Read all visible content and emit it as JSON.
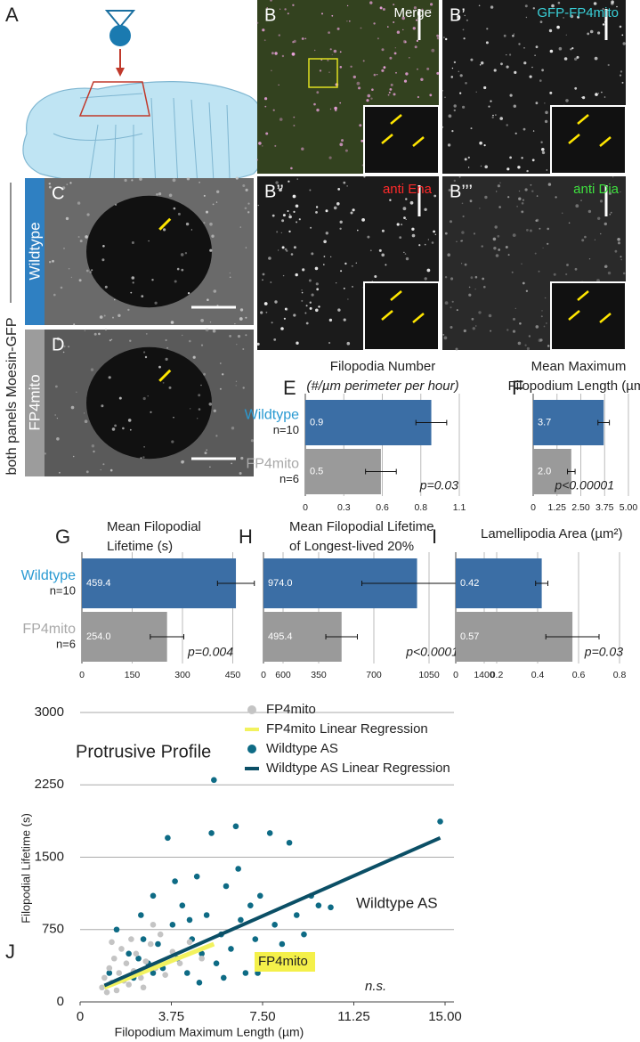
{
  "panel_A": "A",
  "side_label": "both panels Moesin-GFP",
  "row_labels": [
    "Wildtype",
    "FP4mito"
  ],
  "images": [
    {
      "label": "B",
      "caption": "Merge"
    },
    {
      "label": "B’",
      "caption": "GFP-FP4mito"
    },
    {
      "label": "B’’",
      "caption": "anti Ena"
    },
    {
      "label": "B’’’",
      "caption": "anti Dia"
    },
    {
      "label": "C"
    },
    {
      "label": "D"
    }
  ],
  "chart_data": [
    {
      "type": "bar",
      "label": "E",
      "title": "Filopodia Number",
      "subtitle": "(#/µm perimeter per hour)",
      "categories": [
        "Wildtype",
        "FP4mito"
      ],
      "n_labels": [
        "n=10",
        "n=6"
      ],
      "values": [
        0.9,
        0.54
      ],
      "value_labels": [
        "0.9",
        "0.5"
      ],
      "errors": [
        0.11,
        0.11
      ],
      "colors": [
        "#3b6ea5",
        "#9a9a9a"
      ],
      "xlim": [
        0,
        1.1
      ],
      "xticks": [
        0,
        {
          "value": 0.275,
          "label": "0.3"
        },
        {
          "value": 0.55,
          "label": "0.6"
        },
        {
          "value": 0.825,
          "label": "0.8"
        },
        1.1
      ],
      "grid": true,
      "annotation": "p=0.03"
    },
    {
      "type": "bar",
      "label": "F",
      "title": "Mean Maximum",
      "subtitle": "Filopodium Length (µm)",
      "values": [
        3.7,
        2.0
      ],
      "value_labels": [
        "3.7",
        "2.0"
      ],
      "errors": [
        0.3,
        0.2
      ],
      "colors": [
        "#3b6ea5",
        "#9a9a9a"
      ],
      "xlim": [
        0,
        5
      ],
      "xticks": [
        0,
        1.25,
        {
          "value": 2.5,
          "label": "2.50"
        },
        3.75,
        {
          "value": 5,
          "label": "5.00"
        }
      ],
      "grid": true,
      "annotation": "p<0.00001"
    },
    {
      "type": "bar",
      "label": "G",
      "title": "Mean Filopodial",
      "subtitle": "Lifetime (s)",
      "categories": [
        "Wildtype",
        "FP4mito"
      ],
      "n_labels": [
        "n=10",
        "n=6"
      ],
      "values": [
        459.4,
        254
      ],
      "value_labels": [
        "459.4",
        "254.0"
      ],
      "errors": [
        55,
        50
      ],
      "colors": [
        "#3b6ea5",
        "#9a9a9a"
      ],
      "xlim": [
        0,
        600
      ],
      "xticks": [
        0,
        150,
        300,
        450,
        600
      ],
      "grid": true,
      "annotation": "p=0.004"
    },
    {
      "type": "bar",
      "label": "H",
      "title": "Mean Filopodial Lifetime",
      "subtitle": "of Longest-lived 20%",
      "values": [
        974,
        495.4
      ],
      "value_labels": [
        "974.0",
        "495.4"
      ],
      "errors": [
        350,
        100
      ],
      "colors": [
        "#3b6ea5",
        "#9a9a9a"
      ],
      "xlim": [
        0,
        1400
      ],
      "xticks": [
        0,
        350,
        700,
        1050,
        1400
      ],
      "grid": true,
      "annotation": "p<0.0001"
    },
    {
      "type": "bar",
      "label": "I",
      "title": "Lamellipodia Area (µm²)",
      "values": [
        0.42,
        0.57
      ],
      "value_labels": [
        "0.42",
        "0.57"
      ],
      "errors": [
        0.03,
        0.13
      ],
      "colors": [
        "#3b6ea5",
        "#9a9a9a"
      ],
      "xlim": [
        0,
        0.8
      ],
      "xticks": [
        0,
        0.2,
        0.4,
        0.6,
        0.8
      ],
      "grid": true,
      "annotation": "p=0.03"
    },
    {
      "type": "scatter",
      "label": "J",
      "title": "Protrusive Profile",
      "x_label": "Filopodium Maximum Length (µm)",
      "y_label": "Filopodial Lifetime (s)",
      "xlim": [
        0,
        15
      ],
      "xticks": [
        0,
        3.75,
        {
          "value": 7.5,
          "label": "7.50"
        },
        11.25,
        {
          "value": 15,
          "label": "15.00"
        }
      ],
      "ylim": [
        0,
        3000
      ],
      "yticks": [
        0,
        750,
        1500,
        2250,
        3000
      ],
      "grid": true,
      "legend": "top",
      "series": [
        {
          "name": "FP4mito",
          "type": "scatter",
          "color": "#c4c4c4",
          "x": [
            0.9,
            1.0,
            1.1,
            1.2,
            1.3,
            1.4,
            1.5,
            1.6,
            1.7,
            1.8,
            1.9,
            2.0,
            2.1,
            2.2,
            2.3,
            2.5,
            2.7,
            2.9,
            3.1,
            3.3,
            3.5,
            3.8,
            4.1,
            4.5,
            5.0,
            1.3,
            2.6,
            3.0
          ],
          "values": [
            150,
            250,
            100,
            350,
            200,
            450,
            120,
            300,
            550,
            220,
            400,
            180,
            650,
            320,
            500,
            250,
            420,
            600,
            350,
            700,
            280,
            520,
            400,
            620,
            450,
            620,
            150,
            800
          ]
        },
        {
          "name": "FP4mito Linear Regression",
          "type": "line",
          "color": "#f2f25e",
          "x": [
            1,
            5.5
          ],
          "values": [
            150,
            600
          ]
        },
        {
          "name": "Wildtype AS",
          "type": "scatter",
          "color": "#0e6b85",
          "x": [
            1.2,
            1.5,
            2.0,
            2.2,
            2.5,
            2.8,
            3.0,
            3.2,
            3.4,
            3.6,
            3.8,
            4.0,
            4.2,
            4.4,
            4.6,
            4.8,
            5.0,
            5.2,
            5.4,
            5.6,
            5.8,
            6.0,
            6.2,
            6.4,
            6.6,
            6.8,
            7.0,
            7.2,
            7.4,
            7.6,
            7.8,
            8.0,
            8.3,
            8.6,
            8.9,
            9.2,
            9.5,
            9.8,
            10.3,
            14.8,
            5.5,
            3.0,
            2.6,
            4.5,
            5.9,
            6.5,
            3.9,
            7.3,
            4.9,
            2.4
          ],
          "values": [
            300,
            750,
            500,
            250,
            900,
            400,
            1100,
            600,
            350,
            1700,
            800,
            450,
            1000,
            300,
            650,
            1300,
            500,
            900,
            1750,
            400,
            700,
            1200,
            550,
            1820,
            850,
            300,
            1000,
            650,
            1100,
            450,
            1750,
            800,
            600,
            1650,
            900,
            700,
            1100,
            1000,
            980,
            1870,
            2300,
            300,
            650,
            850,
            250,
            1380,
            1250,
            300,
            200,
            450
          ]
        },
        {
          "name": "Wildtype AS Linear Regression",
          "type": "line",
          "color": "#0b4f66",
          "x": [
            1,
            14.8
          ],
          "values": [
            170,
            1700
          ]
        }
      ],
      "annotations": [
        "Wildtype AS",
        "FP4mito",
        "n.s."
      ]
    }
  ]
}
